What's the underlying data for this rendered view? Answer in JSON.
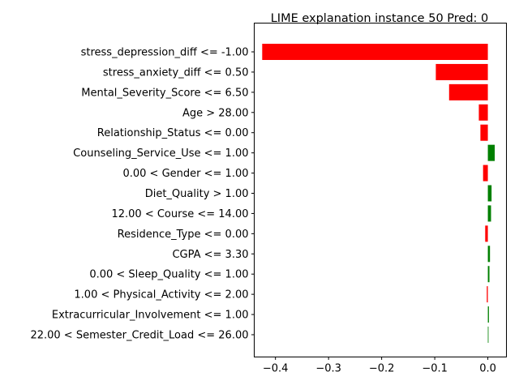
{
  "chart_data": {
    "type": "bar",
    "orientation": "horizontal",
    "title": "LIME explanation instance 50 Pred: 0",
    "xlabel": "",
    "ylabel": "",
    "xlim": [
      -0.44,
      0.035
    ],
    "xticks": [
      -0.4,
      -0.3,
      -0.2,
      -0.1,
      0.0
    ],
    "xtick_labels": [
      "−0.4",
      "−0.3",
      "−0.2",
      "−0.1",
      "0.0"
    ],
    "grid": false,
    "colors": {
      "negative": "#ff0000",
      "positive": "#008000"
    },
    "categories": [
      "stress_depression_diff <= -1.00",
      "stress_anxiety_diff <= 0.50",
      "Mental_Severity_Score <= 6.50",
      "Age > 28.00",
      "Relationship_Status <= 0.00",
      "Counseling_Service_Use <= 1.00",
      "0.00 < Gender <= 1.00",
      "Diet_Quality > 1.00",
      "12.00 < Course <= 14.00",
      "Residence_Type <= 0.00",
      "CGPA <= 3.30",
      "0.00 < Sleep_Quality <= 1.00",
      "1.00 < Physical_Activity <= 2.00",
      "Extracurricular_Involvement <= 1.00",
      "22.00 < Semester_Credit_Load <= 26.00"
    ],
    "values": [
      -0.425,
      -0.098,
      -0.073,
      -0.017,
      -0.014,
      0.013,
      -0.009,
      0.007,
      0.006,
      -0.005,
      0.004,
      0.003,
      -0.002,
      0.002,
      0.001
    ]
  }
}
